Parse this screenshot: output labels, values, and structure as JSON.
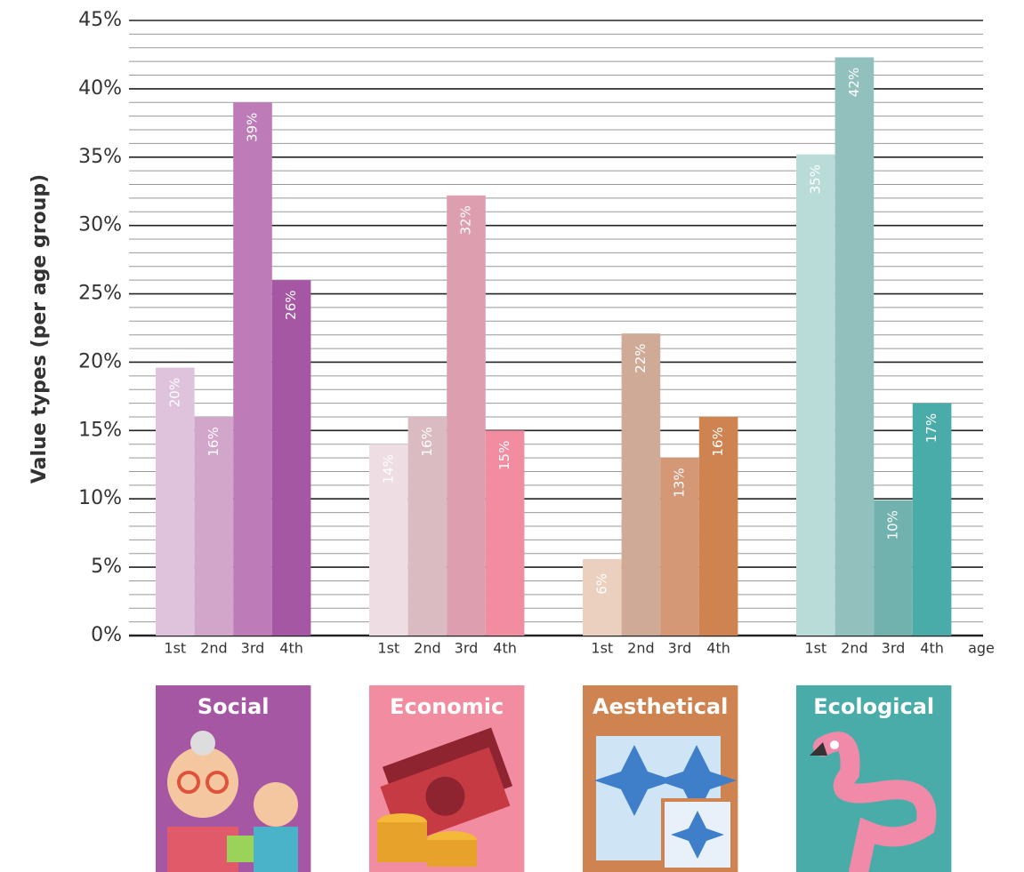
{
  "chart_data": {
    "type": "grouped_bar",
    "y_label": "Value types (per age group)",
    "x_label": "age",
    "categories": [
      "1st",
      "2nd",
      "3rd",
      "4th"
    ],
    "series": [
      {
        "name": "Social",
        "color": "#a657a4",
        "colors": [
          "#dfc3dd",
          "#d2a6cb",
          "#bd7cb7",
          "#a657a4"
        ],
        "values": [
          19.6,
          16,
          39,
          26
        ],
        "value_labels": [
          "20%",
          "16%",
          "39%",
          "26%"
        ]
      },
      {
        "name": "Economic",
        "color": "#f28ca0",
        "colors": [
          "#eedde2",
          "#dabbc2",
          "#dd9fb0",
          "#f28ca0"
        ],
        "values": [
          14,
          16,
          32.2,
          15
        ],
        "value_labels": [
          "14%",
          "16%",
          "32%",
          "15%"
        ]
      },
      {
        "name": "Aesthetical",
        "color": "#cf8350",
        "colors": [
          "#ecd0bf",
          "#cfab97",
          "#d49877",
          "#cf8350"
        ],
        "values": [
          5.6,
          22.1,
          13,
          16
        ],
        "value_labels": [
          "6%",
          "22%",
          "13%",
          "16%"
        ]
      },
      {
        "name": "Ecological",
        "color": "#4aaca8",
        "colors": [
          "#b9dcd9",
          "#92c0bd",
          "#72b2ae",
          "#4aaca8"
        ],
        "values": [
          35.2,
          42.3,
          9.9,
          17
        ],
        "value_labels": [
          "35%",
          "42%",
          "10%",
          "17%"
        ]
      }
    ],
    "ylim": [
      0,
      45
    ],
    "yticks": [
      {
        "value": 0,
        "label": "0%"
      },
      {
        "value": 5,
        "label": "5%"
      },
      {
        "value": 10,
        "label": "10%"
      },
      {
        "value": 15,
        "label": "15%"
      },
      {
        "value": 20,
        "label": "20%"
      },
      {
        "value": 25,
        "label": "25%"
      },
      {
        "value": 30,
        "label": "30%"
      },
      {
        "value": 35,
        "label": "35%"
      },
      {
        "value": 40,
        "label": "40%"
      },
      {
        "value": 45,
        "label": "45%"
      }
    ],
    "minor_grid_step": 1,
    "grid": true
  }
}
